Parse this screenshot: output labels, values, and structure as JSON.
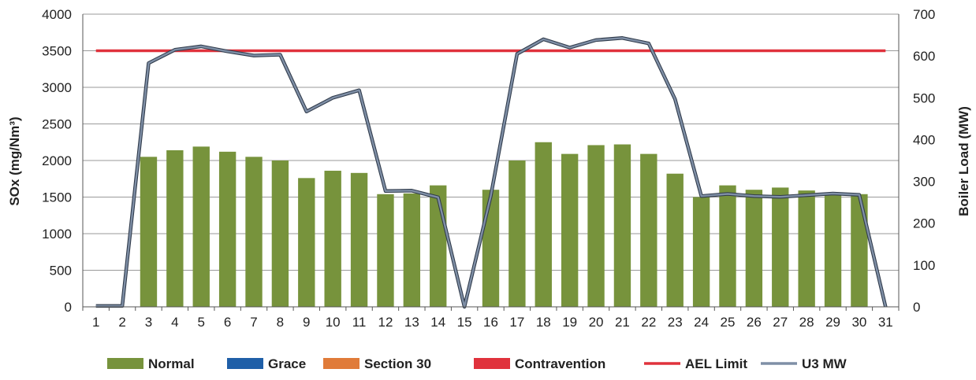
{
  "chart_data": {
    "type": "bar",
    "categories": [
      "1",
      "2",
      "3",
      "4",
      "5",
      "6",
      "7",
      "8",
      "9",
      "10",
      "11",
      "12",
      "13",
      "14",
      "15",
      "16",
      "17",
      "18",
      "19",
      "20",
      "21",
      "22",
      "23",
      "24",
      "25",
      "26",
      "27",
      "28",
      "29",
      "30",
      "31"
    ],
    "series": [
      {
        "name": "Normal",
        "type": "bar",
        "axis": "left",
        "color": "#77933c",
        "values": [
          0,
          0,
          2050,
          2140,
          2190,
          2120,
          2050,
          2000,
          1760,
          1860,
          1830,
          1540,
          1550,
          1660,
          0,
          1600,
          2000,
          2250,
          2090,
          2210,
          2220,
          2090,
          1820,
          1500,
          1660,
          1600,
          1630,
          1590,
          1550,
          1540,
          0
        ]
      },
      {
        "name": "Grace",
        "type": "bar",
        "axis": "left",
        "color": "#1f5fa8",
        "values": [
          0,
          0,
          0,
          0,
          0,
          0,
          0,
          0,
          0,
          0,
          0,
          0,
          0,
          0,
          0,
          0,
          0,
          0,
          0,
          0,
          0,
          0,
          0,
          0,
          0,
          0,
          0,
          0,
          0,
          0,
          0
        ]
      },
      {
        "name": "Section 30",
        "type": "bar",
        "axis": "left",
        "color": "#e07b39",
        "values": [
          0,
          0,
          0,
          0,
          0,
          0,
          0,
          0,
          0,
          0,
          0,
          0,
          0,
          0,
          0,
          0,
          0,
          0,
          0,
          0,
          0,
          0,
          0,
          0,
          0,
          0,
          0,
          0,
          0,
          0,
          0
        ]
      },
      {
        "name": "Contravention",
        "type": "bar",
        "axis": "left",
        "color": "#e0323c",
        "values": [
          0,
          0,
          0,
          0,
          0,
          0,
          0,
          0,
          0,
          0,
          0,
          0,
          0,
          0,
          0,
          0,
          0,
          0,
          0,
          0,
          0,
          0,
          0,
          0,
          0,
          0,
          0,
          0,
          0,
          0,
          0
        ]
      },
      {
        "name": "AEL Limit",
        "type": "line",
        "axis": "left",
        "color": "#e0323c",
        "values": [
          3500,
          3500,
          3500,
          3500,
          3500,
          3500,
          3500,
          3500,
          3500,
          3500,
          3500,
          3500,
          3500,
          3500,
          3500,
          3500,
          3500,
          3500,
          3500,
          3500,
          3500,
          3500,
          3500,
          3500,
          3500,
          3500,
          3500,
          3500,
          3500,
          3500,
          3500
        ]
      },
      {
        "name": "U3 MW",
        "type": "line",
        "axis": "right",
        "color": "#7f8fa6",
        "values": [
          2,
          2,
          583,
          615,
          623,
          611,
          601,
          603,
          467,
          500,
          518,
          277,
          278,
          262,
          0,
          265,
          605,
          640,
          620,
          638,
          643,
          630,
          497,
          265,
          270,
          265,
          263,
          267,
          271,
          268,
          0
        ]
      }
    ],
    "ylabel": "SOx (mg/Nm³)",
    "ylabel_right": "Boiler Load (MW)",
    "ylim": [
      0,
      4000
    ],
    "ylim_right": [
      0,
      700
    ],
    "yticks": [
      0,
      500,
      1000,
      1500,
      2000,
      2500,
      3000,
      3500,
      4000
    ],
    "yticks_right": [
      0,
      100,
      200,
      300,
      400,
      500,
      600,
      700
    ],
    "grid": true,
    "legend": "bottom",
    "legend_items": [
      {
        "label": "Normal",
        "kind": "box",
        "color": "#77933c"
      },
      {
        "label": "Grace",
        "kind": "box",
        "color": "#1f5fa8"
      },
      {
        "label": "Section 30",
        "kind": "box",
        "color": "#e07b39"
      },
      {
        "label": "Contravention",
        "kind": "box",
        "color": "#e0323c"
      },
      {
        "label": "AEL Limit",
        "kind": "line",
        "color": "#e0323c"
      },
      {
        "label": "U3 MW",
        "kind": "line",
        "color": "#7f8fa6"
      }
    ]
  }
}
